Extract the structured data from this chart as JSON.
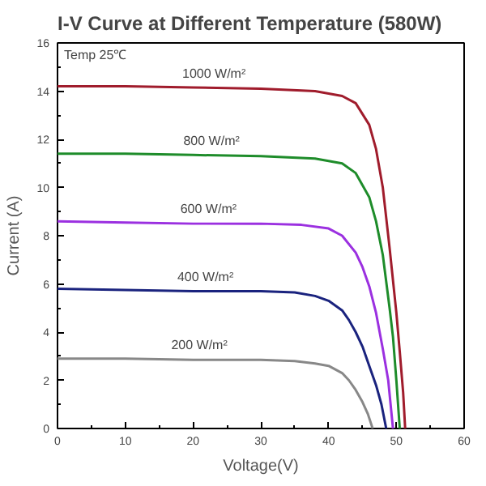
{
  "chart_data": {
    "type": "line",
    "title": "I-V Curve at Different Temperature (580W)",
    "xlabel": "Voltage(V)",
    "ylabel": "Current (A)",
    "annotations": [
      "Temp 25℃"
    ],
    "xlim": [
      0,
      60
    ],
    "ylim": [
      0,
      16
    ],
    "xticks": [
      0,
      10,
      20,
      30,
      40,
      50,
      60
    ],
    "yticks": [
      0,
      2,
      4,
      6,
      8,
      10,
      12,
      14,
      16
    ],
    "grid": false,
    "marker": "none",
    "line_style": "solid",
    "series": [
      {
        "name": "1000 W/m²",
        "color": "#a01c2c",
        "x": [
          0,
          10,
          20,
          30,
          38,
          42,
          44,
          46,
          47,
          48,
          49,
          50,
          50.5,
          51,
          51.3
        ],
        "values": [
          14.2,
          14.2,
          14.15,
          14.1,
          14.0,
          13.8,
          13.5,
          12.6,
          11.6,
          10,
          7.5,
          4.8,
          3.2,
          1.5,
          0
        ]
      },
      {
        "name": "800 W/m²",
        "color": "#1e8c2a",
        "x": [
          0,
          10,
          20,
          30,
          38,
          42,
          44,
          46,
          47,
          48,
          49,
          49.5,
          50,
          50.5
        ],
        "values": [
          11.4,
          11.4,
          11.35,
          11.3,
          11.2,
          11.0,
          10.6,
          9.6,
          8.6,
          7.2,
          5.0,
          3.8,
          2.0,
          0
        ]
      },
      {
        "name": "600 W/m²",
        "color": "#9b30e0",
        "x": [
          0,
          10,
          20,
          30,
          36,
          40,
          42,
          44,
          45,
          46,
          47,
          48,
          48.8,
          49.5
        ],
        "values": [
          8.6,
          8.55,
          8.5,
          8.5,
          8.45,
          8.3,
          8.0,
          7.3,
          6.7,
          5.9,
          4.8,
          3.3,
          2.0,
          0
        ]
      },
      {
        "name": "400 W/m²",
        "color": "#1a237e",
        "x": [
          0,
          10,
          20,
          30,
          35,
          38,
          40,
          42,
          43,
          44,
          45,
          46,
          47,
          47.8,
          48.5
        ],
        "values": [
          5.8,
          5.75,
          5.7,
          5.7,
          5.65,
          5.5,
          5.3,
          4.9,
          4.5,
          4.0,
          3.4,
          2.6,
          1.8,
          1.0,
          0
        ]
      },
      {
        "name": "200 W/m²",
        "color": "#888888",
        "x": [
          0,
          10,
          20,
          30,
          35,
          38,
          40,
          42,
          43,
          44,
          45,
          45.8,
          46.5
        ],
        "values": [
          2.9,
          2.9,
          2.85,
          2.85,
          2.8,
          2.7,
          2.6,
          2.3,
          2.0,
          1.6,
          1.1,
          0.6,
          0
        ]
      }
    ]
  }
}
